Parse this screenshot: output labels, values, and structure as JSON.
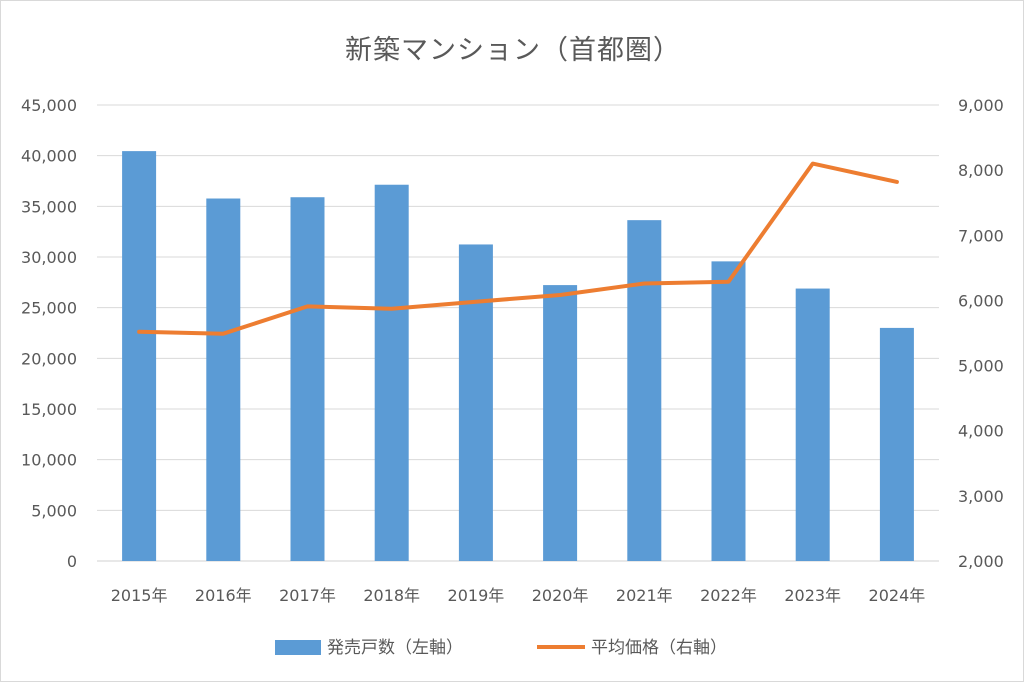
{
  "chart_data": {
    "type": "bar",
    "title": "新築マンション（首都圏）",
    "categories": [
      "2015年",
      "2016年",
      "2017年",
      "2018年",
      "2019年",
      "2020年",
      "2021年",
      "2022年",
      "2023年",
      "2024年"
    ],
    "series": [
      {
        "name": "発売戸数（左軸）",
        "type": "bar",
        "axis": "left",
        "color": "#5b9bd5",
        "values": [
          40449,
          35772,
          35898,
          37132,
          31238,
          27228,
          33636,
          29569,
          26886,
          23003
        ]
      },
      {
        "name": "平均価格（右軸）",
        "type": "line",
        "axis": "right",
        "color": "#ed7d31",
        "values": [
          5518,
          5490,
          5908,
          5871,
          5980,
          6083,
          6260,
          6288,
          8101,
          7820
        ]
      }
    ],
    "left_axis": {
      "ylim": [
        0,
        45000
      ],
      "ticks": [
        "0",
        "5,000",
        "10,000",
        "15,000",
        "20,000",
        "25,000",
        "30,000",
        "35,000",
        "40,000",
        "45,000"
      ]
    },
    "right_axis": {
      "ylim": [
        2000,
        9000
      ],
      "ticks": [
        "2,000",
        "3,000",
        "4,000",
        "5,000",
        "6,000",
        "7,000",
        "8,000",
        "9,000"
      ]
    },
    "grid": true,
    "legend_position": "bottom"
  }
}
